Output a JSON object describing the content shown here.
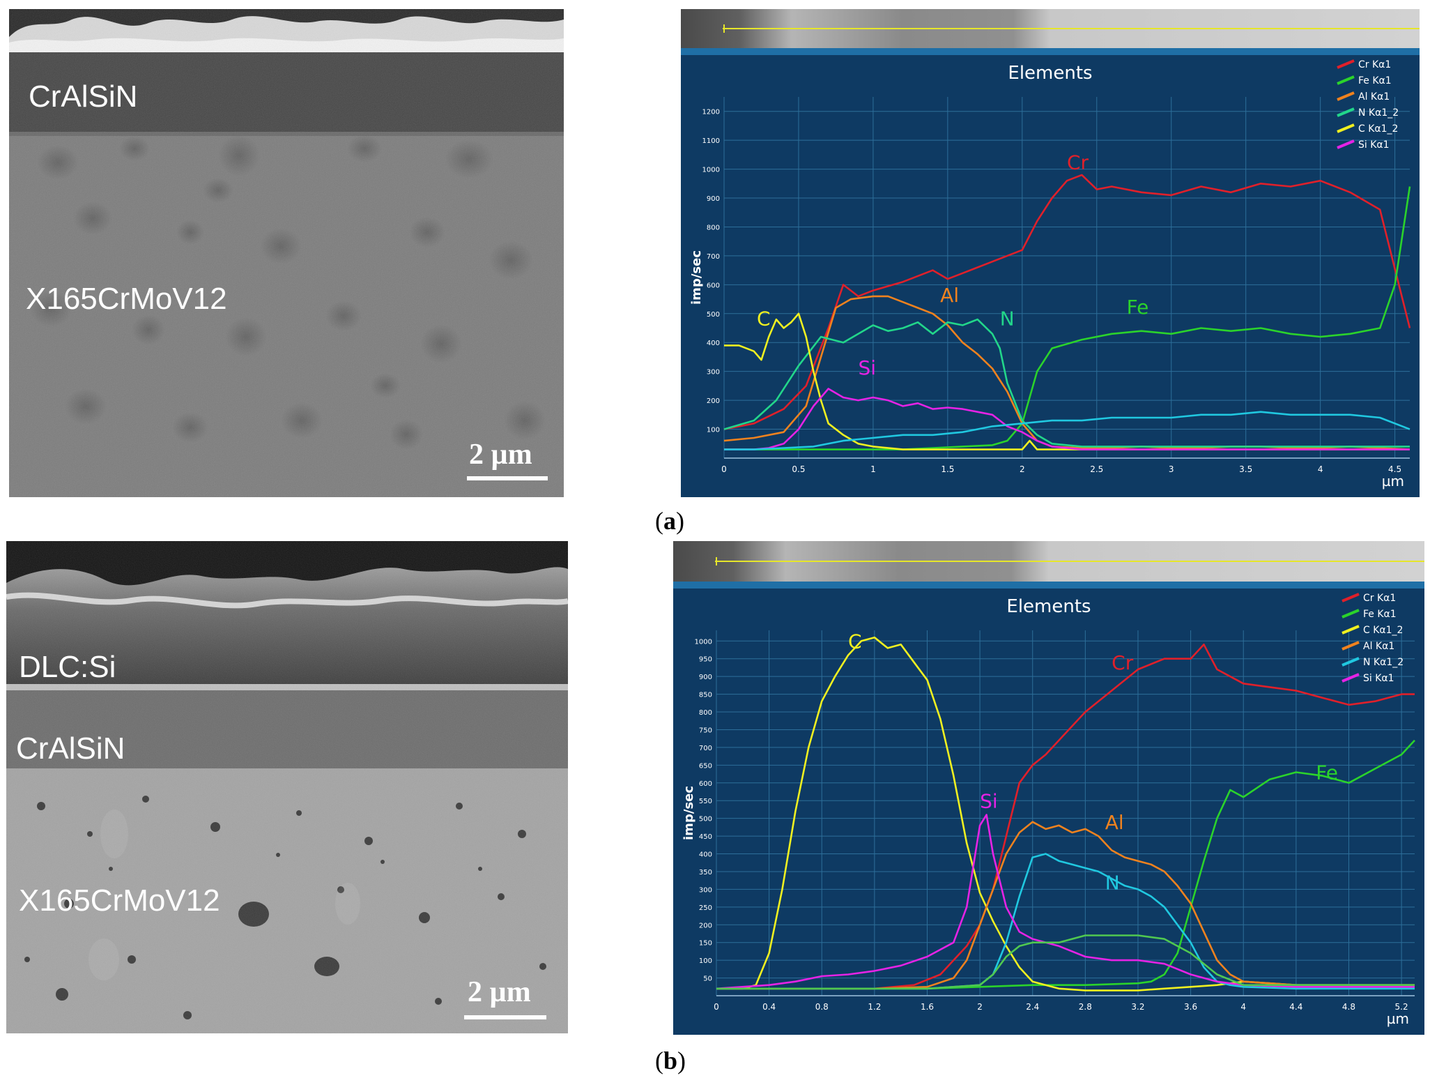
{
  "panel_a": {
    "label_open": "(",
    "label_letter": "a",
    "label_close": ")",
    "sem": {
      "layers": [
        "CrAlSiN",
        "X165CrMoV12"
      ],
      "scale_bar": "2 µm"
    }
  },
  "panel_b": {
    "label_open": "(",
    "label_letter": "b",
    "label_close": ")",
    "sem": {
      "layers": [
        "DLC:Si",
        "CrAlSiN",
        "X165CrMoV12"
      ],
      "scale_bar": "2 µm"
    }
  },
  "chart_data": [
    {
      "type": "line",
      "title": "Elements",
      "ylabel": "imp/sec",
      "xunit": "µm",
      "xlim": [
        0,
        4.6
      ],
      "ylim": [
        0,
        1250
      ],
      "xticks": [
        0,
        0.5,
        1,
        1.5,
        2,
        2.5,
        3,
        3.5,
        4,
        4.5
      ],
      "xtick_labels": [
        "0",
        "0.5",
        "1",
        "1.5",
        "2",
        "2.5",
        "3",
        "3.5",
        "4",
        "4.5"
      ],
      "yticks": [
        100,
        200,
        300,
        400,
        500,
        600,
        700,
        800,
        900,
        1000,
        1100,
        1200
      ],
      "grid": true,
      "legend_position": "top-right",
      "series": [
        {
          "name": "Cr Kα1",
          "color": "#e0202a",
          "label": "Cr",
          "label_at": [
            2.3,
            1000
          ],
          "x": [
            0,
            0.2,
            0.4,
            0.55,
            0.7,
            0.8,
            0.9,
            1.0,
            1.2,
            1.4,
            1.5,
            1.6,
            1.8,
            2.0,
            2.1,
            2.2,
            2.3,
            2.4,
            2.5,
            2.6,
            2.8,
            3.0,
            3.2,
            3.4,
            3.6,
            3.8,
            4.0,
            4.2,
            4.4,
            4.6
          ],
          "y": [
            100,
            120,
            170,
            250,
            450,
            600,
            560,
            580,
            610,
            650,
            620,
            640,
            680,
            720,
            820,
            900,
            960,
            980,
            930,
            940,
            920,
            910,
            940,
            920,
            950,
            940,
            960,
            920,
            860,
            450
          ]
        },
        {
          "name": "Fe Kα1",
          "color": "#2bd32b",
          "label": "Fe",
          "label_at": [
            2.7,
            500
          ],
          "x": [
            0,
            0.5,
            0.8,
            1.0,
            1.2,
            1.4,
            1.6,
            1.8,
            1.9,
            2.0,
            2.1,
            2.2,
            2.4,
            2.6,
            2.8,
            3.0,
            3.2,
            3.4,
            3.6,
            3.8,
            4.0,
            4.2,
            4.4,
            4.5,
            4.6
          ],
          "y": [
            30,
            30,
            30,
            30,
            30,
            35,
            40,
            45,
            60,
            120,
            300,
            380,
            410,
            430,
            440,
            430,
            450,
            440,
            450,
            430,
            420,
            430,
            450,
            600,
            940
          ]
        },
        {
          "name": "Al Kα1",
          "color": "#f0821e",
          "label": "Al",
          "label_at": [
            1.45,
            540
          ],
          "x": [
            0,
            0.2,
            0.4,
            0.55,
            0.65,
            0.75,
            0.85,
            1.0,
            1.1,
            1.2,
            1.3,
            1.4,
            1.5,
            1.6,
            1.7,
            1.8,
            1.9,
            2.0,
            2.1,
            2.2,
            2.4,
            2.6,
            2.8,
            3.0,
            3.2,
            3.4,
            3.6,
            3.8,
            4.0,
            4.2,
            4.4,
            4.6
          ],
          "y": [
            60,
            70,
            90,
            180,
            350,
            520,
            550,
            560,
            560,
            540,
            520,
            500,
            460,
            400,
            360,
            310,
            230,
            120,
            60,
            40,
            35,
            35,
            40,
            35,
            35,
            40,
            40,
            35,
            35,
            40,
            35,
            30
          ]
        },
        {
          "name": "N Kα1_2",
          "color": "#22d68a",
          "label": "N",
          "label_at": [
            1.85,
            460
          ],
          "x": [
            0,
            0.2,
            0.35,
            0.5,
            0.65,
            0.8,
            1.0,
            1.1,
            1.2,
            1.3,
            1.4,
            1.5,
            1.6,
            1.7,
            1.8,
            1.85,
            1.9,
            2.0,
            2.1,
            2.2,
            2.4,
            2.6,
            2.8,
            3.0,
            3.2,
            3.4,
            3.6,
            3.8,
            4.0,
            4.2,
            4.4,
            4.6
          ],
          "y": [
            100,
            130,
            200,
            320,
            420,
            400,
            460,
            440,
            450,
            470,
            430,
            470,
            460,
            480,
            430,
            380,
            260,
            130,
            80,
            50,
            40,
            40,
            40,
            40,
            40,
            40,
            40,
            40,
            40,
            40,
            40,
            40
          ]
        },
        {
          "name": "C Kα1_2",
          "color": "#f0f020",
          "label": "C",
          "label_at": [
            0.22,
            460
          ],
          "x": [
            0,
            0.1,
            0.2,
            0.25,
            0.3,
            0.35,
            0.4,
            0.45,
            0.5,
            0.55,
            0.6,
            0.65,
            0.7,
            0.8,
            0.9,
            1.0,
            1.2,
            1.5,
            1.8,
            2.0,
            2.05,
            2.1,
            2.2,
            2.4,
            2.6,
            2.8,
            3.0,
            3.2,
            3.4,
            3.6,
            3.8,
            4.0,
            4.2,
            4.4,
            4.6
          ],
          "y": [
            390,
            390,
            370,
            340,
            420,
            480,
            450,
            470,
            500,
            420,
            300,
            200,
            120,
            80,
            50,
            40,
            30,
            30,
            30,
            30,
            60,
            30,
            30,
            30,
            30,
            30,
            30,
            30,
            30,
            30,
            30,
            30,
            30,
            30,
            30
          ]
        },
        {
          "name": "Si Kα1",
          "color": "#e523e5",
          "label": "Si",
          "label_at": [
            0.9,
            290
          ],
          "x": [
            0,
            0.2,
            0.3,
            0.4,
            0.5,
            0.6,
            0.7,
            0.8,
            0.9,
            1.0,
            1.1,
            1.2,
            1.3,
            1.4,
            1.5,
            1.6,
            1.7,
            1.8,
            1.9,
            2.0,
            2.1,
            2.2,
            2.4,
            2.6,
            2.8,
            3.0,
            3.4,
            3.8,
            4.2,
            4.6
          ],
          "y": [
            30,
            30,
            35,
            50,
            100,
            180,
            240,
            210,
            200,
            210,
            200,
            180,
            190,
            170,
            175,
            170,
            160,
            150,
            110,
            90,
            60,
            40,
            30,
            30,
            30,
            30,
            30,
            30,
            30,
            30
          ]
        },
        {
          "name": "",
          "color": "#20c8e0",
          "x": [
            0,
            0.2,
            0.4,
            0.6,
            0.8,
            1.0,
            1.2,
            1.4,
            1.6,
            1.8,
            2.0,
            2.2,
            2.4,
            2.6,
            2.8,
            3.0,
            3.2,
            3.4,
            3.6,
            3.8,
            4.0,
            4.2,
            4.4,
            4.6
          ],
          "y": [
            30,
            30,
            35,
            40,
            60,
            70,
            80,
            80,
            90,
            110,
            120,
            130,
            130,
            140,
            140,
            140,
            150,
            150,
            160,
            150,
            150,
            150,
            140,
            100
          ]
        }
      ]
    },
    {
      "type": "line",
      "title": "Elements",
      "ylabel": "imp/sec",
      "xunit": "µm",
      "xlim": [
        0,
        5.3
      ],
      "ylim": [
        0,
        1030
      ],
      "xticks": [
        0,
        0.4,
        0.8,
        1.2,
        1.6,
        2,
        2.4,
        2.8,
        3.2,
        3.6,
        4,
        4.4,
        4.8,
        5.2
      ],
      "xtick_labels": [
        "0",
        "0.4",
        "0.8",
        "1.2",
        "1.6",
        "2",
        "2.4",
        "2.8",
        "3.2",
        "3.6",
        "4",
        "4.4",
        "4.8",
        "5.2"
      ],
      "yticks": [
        50,
        100,
        150,
        200,
        250,
        300,
        350,
        400,
        450,
        500,
        550,
        600,
        650,
        700,
        750,
        800,
        850,
        900,
        950,
        1000
      ],
      "grid": true,
      "legend_position": "top-right",
      "series": [
        {
          "name": "Cr Kα1",
          "color": "#e0202a",
          "label": "Cr",
          "label_at": [
            3.0,
            920
          ],
          "x": [
            0,
            0.4,
            0.8,
            1.2,
            1.5,
            1.7,
            1.8,
            1.9,
            2.0,
            2.1,
            2.2,
            2.3,
            2.4,
            2.5,
            2.6,
            2.8,
            3.0,
            3.2,
            3.4,
            3.6,
            3.7,
            3.8,
            4.0,
            4.2,
            4.4,
            4.6,
            4.8,
            5.0,
            5.2,
            5.3
          ],
          "y": [
            20,
            20,
            20,
            20,
            30,
            60,
            100,
            140,
            200,
            300,
            450,
            600,
            650,
            680,
            720,
            800,
            860,
            920,
            950,
            950,
            990,
            920,
            880,
            870,
            860,
            840,
            820,
            830,
            850,
            850
          ]
        },
        {
          "name": "Fe Kα1",
          "color": "#2bd32b",
          "label": "Fe",
          "label_at": [
            4.55,
            610
          ],
          "x": [
            0,
            0.4,
            0.8,
            1.2,
            1.6,
            2.0,
            2.4,
            2.8,
            3.2,
            3.3,
            3.4,
            3.5,
            3.6,
            3.7,
            3.8,
            3.9,
            4.0,
            4.2,
            4.4,
            4.6,
            4.8,
            5.0,
            5.2,
            5.3
          ],
          "y": [
            20,
            20,
            20,
            20,
            20,
            25,
            30,
            30,
            35,
            40,
            60,
            120,
            250,
            380,
            500,
            580,
            560,
            610,
            630,
            620,
            600,
            640,
            680,
            720
          ]
        },
        {
          "name": "C Kα1_2",
          "color": "#f0f020",
          "label": "C",
          "label_at": [
            1.0,
            980
          ],
          "x": [
            0,
            0.2,
            0.3,
            0.4,
            0.5,
            0.6,
            0.7,
            0.8,
            0.9,
            1.0,
            1.1,
            1.2,
            1.3,
            1.4,
            1.5,
            1.6,
            1.7,
            1.8,
            1.9,
            2.0,
            2.1,
            2.2,
            2.3,
            2.4,
            2.6,
            2.8,
            3.0,
            3.2,
            3.4,
            3.6,
            3.8,
            4.0,
            4.4,
            4.8,
            5.2,
            5.3
          ],
          "y": [
            20,
            20,
            30,
            120,
            300,
            520,
            700,
            830,
            900,
            960,
            1000,
            1010,
            980,
            990,
            940,
            890,
            780,
            620,
            430,
            290,
            210,
            140,
            80,
            40,
            20,
            15,
            15,
            15,
            20,
            25,
            30,
            40,
            30,
            30,
            30,
            30
          ]
        },
        {
          "name": "Al Kα1",
          "color": "#f0821e",
          "label": "Al",
          "label_at": [
            2.95,
            470
          ],
          "x": [
            0,
            0.4,
            0.8,
            1.2,
            1.6,
            1.8,
            1.9,
            2.0,
            2.1,
            2.2,
            2.3,
            2.4,
            2.5,
            2.6,
            2.7,
            2.8,
            2.9,
            3.0,
            3.1,
            3.2,
            3.3,
            3.4,
            3.5,
            3.6,
            3.7,
            3.8,
            3.9,
            4.0,
            4.4,
            4.8,
            5.2,
            5.3
          ],
          "y": [
            20,
            20,
            20,
            20,
            25,
            50,
            100,
            200,
            300,
            400,
            460,
            490,
            470,
            480,
            460,
            470,
            450,
            410,
            390,
            380,
            370,
            350,
            310,
            260,
            180,
            100,
            60,
            40,
            30,
            30,
            30,
            30
          ]
        },
        {
          "name": "N Kα1_2",
          "color": "#20c8e0",
          "label": "N",
          "label_at": [
            2.95,
            300
          ],
          "x": [
            0,
            0.4,
            0.8,
            1.2,
            1.6,
            2.0,
            2.1,
            2.2,
            2.3,
            2.4,
            2.5,
            2.6,
            2.7,
            2.8,
            2.9,
            3.0,
            3.1,
            3.2,
            3.3,
            3.4,
            3.5,
            3.6,
            3.7,
            3.8,
            3.9,
            4.0,
            4.4,
            4.8,
            5.2,
            5.3
          ],
          "y": [
            20,
            20,
            20,
            20,
            20,
            30,
            60,
            150,
            280,
            390,
            400,
            380,
            370,
            360,
            350,
            330,
            310,
            300,
            280,
            250,
            200,
            150,
            80,
            40,
            30,
            25,
            20,
            20,
            20,
            20
          ]
        },
        {
          "name": "Si Kα1",
          "color": "#e523e5",
          "label": "Si",
          "label_at": [
            2.0,
            530
          ],
          "x": [
            0,
            0.4,
            0.6,
            0.8,
            1.0,
            1.2,
            1.4,
            1.6,
            1.8,
            1.9,
            2.0,
            2.05,
            2.1,
            2.2,
            2.3,
            2.4,
            2.6,
            2.8,
            3.0,
            3.2,
            3.4,
            3.6,
            3.8,
            4.0,
            4.4,
            4.8,
            5.2,
            5.3
          ],
          "y": [
            20,
            30,
            40,
            55,
            60,
            70,
            85,
            110,
            150,
            250,
            480,
            510,
            400,
            250,
            180,
            160,
            140,
            110,
            100,
            100,
            90,
            60,
            40,
            30,
            25,
            25,
            25,
            25
          ]
        },
        {
          "name": "",
          "color": "#50c850",
          "x": [
            0,
            0.8,
            1.6,
            2.0,
            2.1,
            2.2,
            2.3,
            2.4,
            2.6,
            2.8,
            3.0,
            3.2,
            3.4,
            3.6,
            3.8,
            4.0,
            4.4,
            4.8,
            5.2,
            5.3
          ],
          "y": [
            20,
            20,
            20,
            30,
            60,
            110,
            140,
            150,
            150,
            170,
            170,
            170,
            160,
            120,
            60,
            30,
            30,
            30,
            30,
            30
          ]
        }
      ]
    }
  ]
}
